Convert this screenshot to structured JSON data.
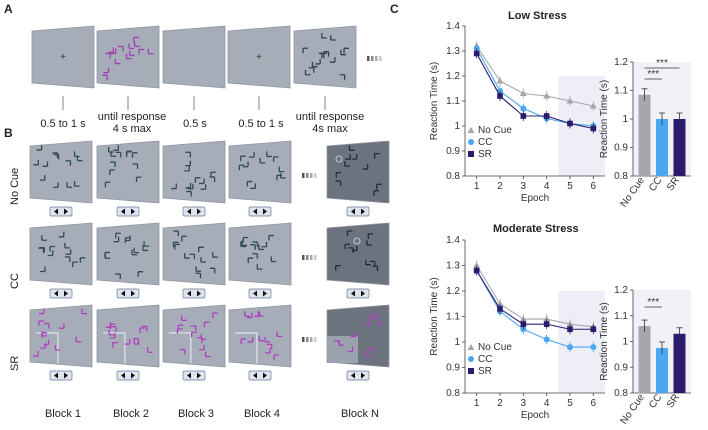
{
  "panels": {
    "a": "A",
    "b": "B",
    "c": "C"
  },
  "timeline": [
    "0.5 to 1 s",
    "until response\n4 s max",
    "0.5 s",
    "0.5 to 1 s",
    "until response\n4s max"
  ],
  "rows": [
    "No Cue",
    "CC",
    "SR"
  ],
  "blocks": [
    "Block 1",
    "Block 2",
    "Block 3",
    "Block 4",
    "Block N"
  ],
  "chart_data": [
    {
      "type": "line",
      "title": "Low Stress",
      "xlabel": "Epoch",
      "ylabel": "Reaction Time (s)",
      "x": [
        1,
        2,
        3,
        4,
        5,
        6
      ],
      "ylim": [
        0.8,
        1.4
      ],
      "yticks": [
        "0.8",
        "0.9",
        "1",
        "1.1",
        "1.2",
        "1.3",
        "1.4"
      ],
      "series": [
        {
          "name": "No Cue",
          "color": "#a6a6ae",
          "marker": "triangle",
          "values": [
            1.32,
            1.18,
            1.13,
            1.12,
            1.1,
            1.08
          ]
        },
        {
          "name": "CC",
          "color": "#4aa8f0",
          "marker": "circle",
          "values": [
            1.31,
            1.14,
            1.07,
            1.03,
            1.01,
            1.0
          ]
        },
        {
          "name": "SR",
          "color": "#2b1a6e",
          "marker": "square",
          "values": [
            1.29,
            1.12,
            1.04,
            1.04,
            1.01,
            0.99
          ]
        }
      ]
    },
    {
      "type": "bar",
      "categories": [
        "No Cue",
        "CC",
        "SR"
      ],
      "values": [
        1.085,
        1.0,
        1.0
      ],
      "colors": [
        "#a6a6ae",
        "#4aa8f0",
        "#2b1a6e"
      ],
      "ylabel": "Reaction Time (s)",
      "ylim": [
        0.8,
        1.2
      ],
      "yticks": [
        "0.8",
        "0.9",
        "1",
        "1.1",
        "1.2"
      ],
      "significance": [
        "***",
        "***"
      ]
    },
    {
      "type": "line",
      "title": "Moderate Stress",
      "xlabel": "Epoch",
      "ylabel": "Reaction Time (s)",
      "x": [
        1,
        2,
        3,
        4,
        5,
        6
      ],
      "ylim": [
        0.8,
        1.4
      ],
      "yticks": [
        "0.8",
        "0.9",
        "1",
        "1.1",
        "1.2",
        "1.3",
        "1.4"
      ],
      "series": [
        {
          "name": "No Cue",
          "color": "#a6a6ae",
          "marker": "triangle",
          "values": [
            1.3,
            1.15,
            1.09,
            1.09,
            1.07,
            1.06
          ]
        },
        {
          "name": "CC",
          "color": "#4aa8f0",
          "marker": "circle",
          "values": [
            1.28,
            1.12,
            1.05,
            1.01,
            0.98,
            0.98
          ]
        },
        {
          "name": "SR",
          "color": "#2b1a6e",
          "marker": "square",
          "values": [
            1.28,
            1.13,
            1.07,
            1.07,
            1.05,
            1.05
          ]
        }
      ]
    },
    {
      "type": "bar",
      "categories": [
        "No Cue",
        "CC",
        "SR"
      ],
      "values": [
        1.06,
        0.975,
        1.03
      ],
      "colors": [
        "#a6a6ae",
        "#4aa8f0",
        "#2b1a6e"
      ],
      "ylabel": "Reaction Time (s)",
      "ylim": [
        0.8,
        1.2
      ],
      "yticks": [
        "0.8",
        "0.9",
        "1",
        "1.1",
        "1.2"
      ],
      "significance": [
        "***"
      ]
    }
  ]
}
